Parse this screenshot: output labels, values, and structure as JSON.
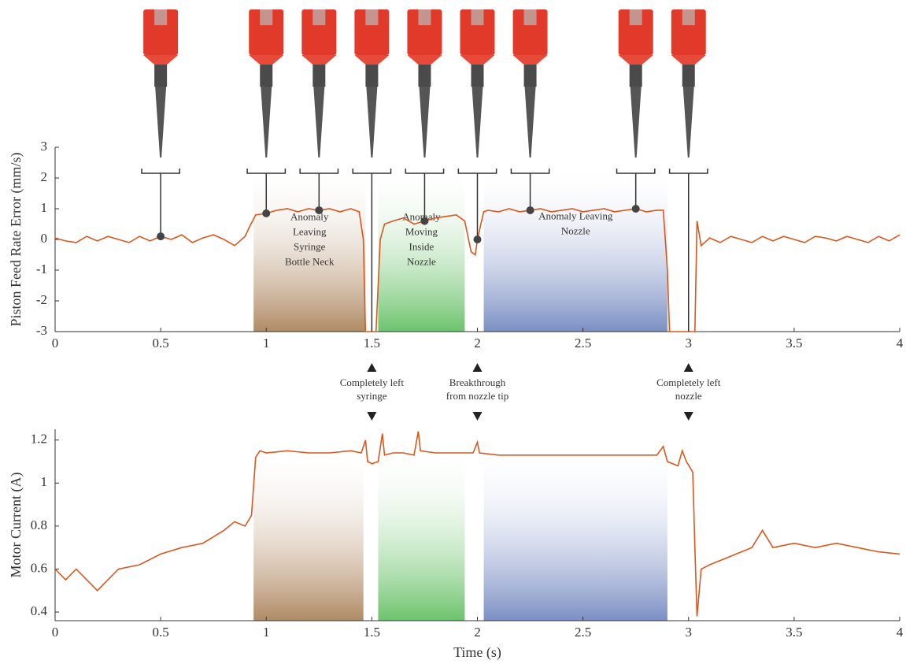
{
  "chart_data": [
    {
      "type": "line",
      "ylabel": "Piston Feed Rate Error (mm/s)",
      "xlim": [
        0,
        4
      ],
      "xticks": [
        0,
        0.5,
        1,
        1.5,
        2,
        2.5,
        3,
        3.5,
        4
      ],
      "ylim": [
        -3,
        3
      ],
      "yticks": [
        -3,
        -2,
        -1,
        0,
        1,
        2,
        3
      ],
      "color": "#d9581f",
      "x": [
        0,
        0.05,
        0.1,
        0.15,
        0.2,
        0.25,
        0.3,
        0.35,
        0.4,
        0.45,
        0.5,
        0.55,
        0.6,
        0.65,
        0.7,
        0.75,
        0.8,
        0.85,
        0.9,
        0.92,
        0.95,
        1.0,
        1.05,
        1.1,
        1.15,
        1.2,
        1.25,
        1.3,
        1.35,
        1.4,
        1.44,
        1.46,
        1.47,
        1.52,
        1.54,
        1.56,
        1.6,
        1.65,
        1.7,
        1.75,
        1.8,
        1.85,
        1.9,
        1.94,
        1.97,
        1.99,
        2.0,
        2.03,
        2.05,
        2.1,
        2.15,
        2.2,
        2.25,
        2.3,
        2.35,
        2.4,
        2.45,
        2.5,
        2.55,
        2.6,
        2.65,
        2.7,
        2.75,
        2.8,
        2.85,
        2.88,
        2.9,
        2.91,
        3.03,
        3.04,
        3.06,
        3.1,
        3.15,
        3.2,
        3.25,
        3.3,
        3.35,
        3.4,
        3.45,
        3.5,
        3.55,
        3.6,
        3.65,
        3.7,
        3.75,
        3.8,
        3.85,
        3.9,
        3.95,
        4.0
      ],
      "values": [
        0.05,
        -0.05,
        -0.1,
        0.1,
        -0.05,
        0.1,
        0,
        -0.1,
        0.1,
        -0.05,
        0.1,
        0,
        0.15,
        -0.1,
        0.05,
        0.15,
        0,
        -0.2,
        0.1,
        0.4,
        0.8,
        0.85,
        0.95,
        1.0,
        0.9,
        1.0,
        0.95,
        1.0,
        0.9,
        1.0,
        0.9,
        0,
        -3,
        -3,
        0,
        0.5,
        0.6,
        0.7,
        0.5,
        0.6,
        0.7,
        0.75,
        0.8,
        0.6,
        -0.4,
        -0.5,
        0,
        0.9,
        0.95,
        0.9,
        1.0,
        0.9,
        0.95,
        1.0,
        0.9,
        0.95,
        1.0,
        0.9,
        0.95,
        1.0,
        0.9,
        0.95,
        1.0,
        0.9,
        0.95,
        0.95,
        -1,
        -3,
        -3,
        0.6,
        -0.2,
        0.05,
        -0.1,
        0.1,
        0,
        -0.1,
        0.1,
        -0.05,
        0.1,
        0,
        -0.1,
        0.1,
        0.05,
        -0.05,
        0.1,
        0,
        -0.1,
        0.1,
        -0.05,
        0.15
      ],
      "regions": [
        {
          "x0": 0.94,
          "x1": 1.47,
          "color": "#b08a64",
          "label": [
            "Anomaly",
            "Leaving",
            "Syringe",
            "Bottle Neck"
          ]
        },
        {
          "x0": 1.53,
          "x1": 1.94,
          "color": "#6cc36c",
          "label": [
            "Anomaly",
            "Moving",
            "Inside",
            "Nozzle"
          ]
        },
        {
          "x0": 2.03,
          "x1": 2.9,
          "color": "#7b8fc4",
          "label": [
            "Anomaly Leaving",
            "Nozzle"
          ]
        }
      ],
      "snapshots": [
        0.5,
        1,
        1.25,
        1.5,
        1.75,
        2,
        2.25,
        2.75,
        3
      ],
      "annotations": [
        {
          "x": 1.5,
          "label": [
            "Completely left",
            "syringe"
          ]
        },
        {
          "x": 2,
          "label": [
            "Breakthrough",
            "from nozzle tip"
          ]
        },
        {
          "x": 3,
          "label": [
            "Completely left",
            "nozzle"
          ]
        }
      ]
    },
    {
      "type": "line",
      "ylabel": "Motor Current (A)",
      "xlabel": "Time (s)",
      "xlim": [
        0,
        4
      ],
      "xticks": [
        0,
        0.5,
        1,
        1.5,
        2,
        2.5,
        3,
        3.5,
        4
      ],
      "ylim": [
        0.36,
        1.25
      ],
      "yticks": [
        0.4,
        0.6,
        0.8,
        1,
        1.2
      ],
      "color": "#d9581f",
      "x": [
        0,
        0.05,
        0.1,
        0.15,
        0.2,
        0.25,
        0.3,
        0.4,
        0.5,
        0.6,
        0.7,
        0.8,
        0.85,
        0.9,
        0.93,
        0.95,
        0.97,
        1.0,
        1.1,
        1.2,
        1.3,
        1.4,
        1.45,
        1.47,
        1.48,
        1.5,
        1.53,
        1.55,
        1.56,
        1.6,
        1.65,
        1.7,
        1.72,
        1.73,
        1.8,
        1.9,
        1.98,
        2.0,
        2.01,
        2.1,
        2.3,
        2.5,
        2.7,
        2.85,
        2.88,
        2.9,
        2.95,
        2.97,
        2.99,
        3.02,
        3.03,
        3.04,
        3.06,
        3.1,
        3.2,
        3.3,
        3.35,
        3.4,
        3.5,
        3.6,
        3.7,
        3.8,
        3.9,
        4.0
      ],
      "values": [
        0.6,
        0.55,
        0.6,
        0.55,
        0.5,
        0.55,
        0.6,
        0.62,
        0.67,
        0.7,
        0.72,
        0.78,
        0.82,
        0.8,
        0.85,
        1.12,
        1.15,
        1.14,
        1.15,
        1.14,
        1.14,
        1.15,
        1.14,
        1.2,
        1.1,
        1.09,
        1.1,
        1.23,
        1.13,
        1.14,
        1.14,
        1.13,
        1.24,
        1.15,
        1.14,
        1.14,
        1.14,
        1.19,
        1.14,
        1.13,
        1.13,
        1.13,
        1.13,
        1.13,
        1.17,
        1.1,
        1.08,
        1.15,
        1.1,
        1.05,
        0.7,
        0.38,
        0.6,
        0.62,
        0.66,
        0.7,
        0.78,
        0.7,
        0.72,
        0.7,
        0.72,
        0.7,
        0.68,
        0.67
      ],
      "regions": [
        {
          "x0": 0.94,
          "x1": 1.46,
          "color": "#b08a64"
        },
        {
          "x0": 1.53,
          "x1": 1.94,
          "color": "#6cc36c"
        },
        {
          "x0": 2.03,
          "x1": 2.9,
          "color": "#7b8fc4"
        }
      ]
    }
  ]
}
